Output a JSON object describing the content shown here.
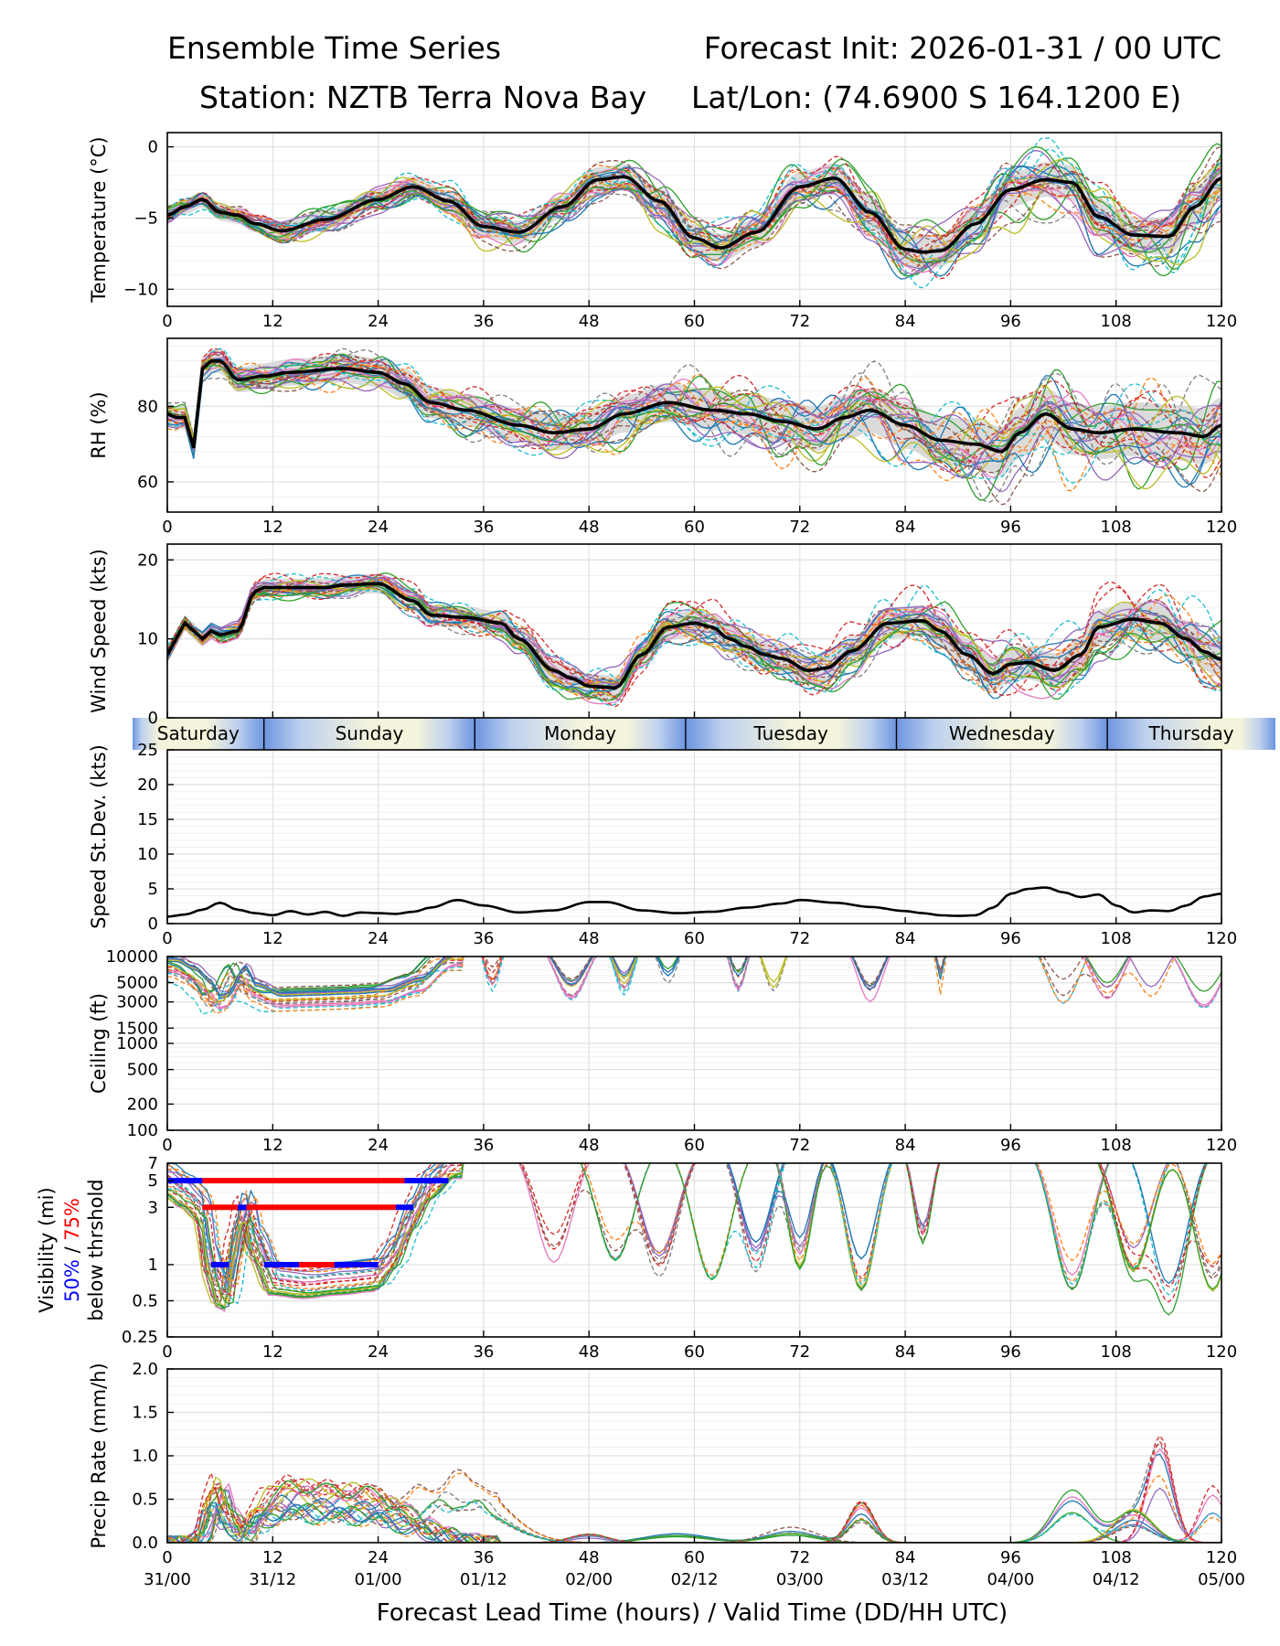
{
  "header": {
    "left_line1": "Ensemble Time Series",
    "right_line1": "Forecast Init: 2026-01-31 / 00 UTC",
    "left_line2": "Station: NZTB Terra Nova Bay",
    "right_line2": "Lat/Lon: (74.6900 S 164.1200 E)"
  },
  "colors": {
    "members": [
      "#1f77b4",
      "#ff7f0e",
      "#2ca02c",
      "#d62728",
      "#9467bd",
      "#8c564b",
      "#e377c2",
      "#7f7f7f",
      "#bcbd22",
      "#17becf"
    ],
    "mean": "#000000",
    "spread_fill": "#cccccc",
    "grid": "#e0e0e0",
    "vis_50": "#0000ff",
    "vis_75": "#ff0000",
    "band_blue": "#6d95e0",
    "band_cream": "#f4f4dc"
  },
  "x_axis": {
    "ticks": [
      0,
      12,
      24,
      36,
      48,
      60,
      72,
      84,
      96,
      108,
      120
    ],
    "valid_times": [
      "31/00",
      "31/12",
      "01/00",
      "01/12",
      "02/00",
      "02/12",
      "03/00",
      "03/12",
      "04/00",
      "04/12",
      "05/00"
    ],
    "label": "Forecast Lead Time (hours) / Valid Time (DD/HH UTC)",
    "range": [
      0,
      120
    ]
  },
  "day_band": [
    "Saturday",
    "Sunday",
    "Monday",
    "Tuesday",
    "Wednesday",
    "Thursday"
  ],
  "vis_label": {
    "line1": "Visibility (mi)",
    "p50": "50%",
    "slash": " / ",
    "p75": "75%",
    "line3": "below thrshold"
  },
  "chart_data": [
    {
      "id": "temp",
      "type": "line",
      "ylabel": "Temperature (°C)",
      "ylim": [
        -11.2,
        1.0
      ],
      "yticks": [
        0,
        -5,
        -10
      ],
      "ytick_labels": [
        "0",
        "−5",
        "−10"
      ],
      "mean": {
        "x": [
          0,
          2,
          4,
          6,
          8,
          10,
          13,
          18,
          24,
          28,
          32,
          36,
          40,
          45,
          49,
          52,
          56,
          60,
          63,
          67,
          72,
          76,
          80,
          84,
          86,
          88,
          92,
          96,
          100,
          103,
          106,
          110,
          114,
          117,
          120
        ],
        "y": [
          -4.8,
          -4.2,
          -3.7,
          -4.6,
          -4.8,
          -5.4,
          -5.9,
          -5.1,
          -3.7,
          -2.8,
          -3.8,
          -5.6,
          -6.0,
          -4.2,
          -2.3,
          -2.1,
          -3.8,
          -6.4,
          -7.1,
          -6.0,
          -2.8,
          -2.2,
          -4.6,
          -7.2,
          -7.4,
          -7.3,
          -5.4,
          -3.0,
          -2.3,
          -2.5,
          -4.9,
          -6.2,
          -6.3,
          -4.2,
          -2.2
        ]
      },
      "spread": 0.9,
      "members": 26,
      "dashed_every": 2,
      "clip_low": -10.5,
      "clip_high": 0.6
    },
    {
      "id": "rh",
      "type": "line",
      "ylabel": "RH (%)",
      "ylim": [
        52,
        98
      ],
      "yticks": [
        60,
        80
      ],
      "ytick_labels": [
        "60",
        "80"
      ],
      "mean": {
        "x": [
          0,
          1,
          2,
          3,
          4,
          5,
          6,
          8,
          11,
          14,
          20,
          24,
          27,
          30,
          34,
          40,
          44,
          48,
          52,
          57,
          62,
          66,
          70,
          74,
          77,
          80,
          84,
          88,
          92,
          95,
          97,
          100,
          103,
          106,
          110,
          115,
          118,
          120
        ],
        "y": [
          78,
          77,
          77,
          69,
          90,
          92,
          92,
          87,
          88,
          89,
          90,
          89,
          86,
          81,
          79,
          75,
          73,
          74,
          78,
          81,
          79,
          78,
          76,
          74,
          77,
          79,
          75,
          71,
          70,
          68,
          73,
          78,
          74,
          73,
          74,
          73,
          72,
          75
        ]
      },
      "spread": 5,
      "members": 26,
      "dashed_every": 2,
      "clip_low": 54,
      "clip_high": 97
    },
    {
      "id": "wind",
      "type": "line",
      "ylabel": "Wind Speed (kts)",
      "ylim": [
        0,
        22
      ],
      "yticks": [
        0,
        10,
        20
      ],
      "ytick_labels": [
        "0",
        "10",
        "20"
      ],
      "mean": {
        "x": [
          0,
          1,
          2,
          3,
          4,
          5,
          6,
          8,
          10,
          11,
          14,
          18,
          20,
          24,
          28,
          30,
          34,
          38,
          40,
          44,
          46,
          48,
          51,
          54,
          57,
          60,
          62,
          64,
          66,
          68,
          70,
          73,
          75,
          78,
          82,
          86,
          88,
          91,
          94,
          96,
          98,
          101,
          104,
          106,
          110,
          113,
          116,
          118,
          120
        ],
        "y": [
          8,
          10,
          12,
          11,
          10,
          11,
          10.5,
          11,
          16,
          16.5,
          16.5,
          16.5,
          16.8,
          17,
          14.8,
          13,
          12.7,
          12,
          10,
          6,
          5,
          4,
          3.8,
          8,
          11.5,
          12,
          11.5,
          10,
          9,
          8,
          7.5,
          6,
          6.3,
          8.5,
          12,
          12.3,
          11,
          8,
          5.6,
          6.8,
          7,
          6,
          8,
          11.5,
          12.5,
          12,
          10,
          8.4,
          7.4
        ]
      },
      "spread": 1.6,
      "members": 26,
      "dashed_every": 2,
      "clip_low": 0,
      "clip_high": 21
    },
    {
      "id": "std",
      "type": "line",
      "ylabel": "Speed St.Dev. (kts)",
      "ylim": [
        0,
        25
      ],
      "yticks": [
        0,
        5,
        10,
        15,
        20,
        25
      ],
      "ytick_labels": [
        "0",
        "5",
        "10",
        "15",
        "20",
        "25"
      ],
      "mean": {
        "x": [
          0,
          2,
          4,
          6,
          8,
          10,
          12,
          14,
          16,
          18,
          20,
          22,
          24,
          26,
          28,
          30,
          33,
          36,
          40,
          44,
          48,
          50,
          54,
          58,
          62,
          66,
          70,
          72,
          76,
          80,
          84,
          86,
          88,
          90,
          92,
          94,
          96,
          98,
          100,
          102,
          104,
          106,
          108,
          110,
          112,
          114,
          116,
          118,
          120
        ],
        "y": [
          1.0,
          1.3,
          2.0,
          3.0,
          2.0,
          1.5,
          1.2,
          1.8,
          1.3,
          1.7,
          1.1,
          1.6,
          1.5,
          1.4,
          1.7,
          2.3,
          3.4,
          2.6,
          1.6,
          1.9,
          3.1,
          3.1,
          1.9,
          1.5,
          1.7,
          2.3,
          2.9,
          3.4,
          3.0,
          2.4,
          1.8,
          1.5,
          1.2,
          1.1,
          1.2,
          2.3,
          4.3,
          5.0,
          5.2,
          4.5,
          3.8,
          4.2,
          2.6,
          1.6,
          1.9,
          1.8,
          2.6,
          3.9,
          4.3
        ]
      }
    },
    {
      "id": "ceiling",
      "type": "line",
      "scale": "log",
      "ylabel": "Ceiling (ft)",
      "ylim": [
        100,
        10000
      ],
      "yticks": [
        100,
        200,
        500,
        1000,
        1500,
        3000,
        5000,
        10000
      ],
      "ytick_labels": [
        "100",
        "200",
        "500",
        "1000",
        "1500",
        "3000",
        "5000",
        "10000"
      ],
      "members": 22,
      "early_profile": {
        "x": [
          0,
          2,
          4,
          5,
          6,
          8,
          9,
          12,
          16,
          20,
          24,
          28,
          32
        ],
        "y": [
          8000,
          6500,
          4500,
          3000,
          3200,
          6500,
          4200,
          3200,
          3300,
          3400,
          3600,
          4800,
          9500
        ]
      },
      "dips": [
        {
          "x": 37,
          "y": 5500,
          "w": 1.2
        },
        {
          "x": 46,
          "y": 4000,
          "w": 2.5
        },
        {
          "x": 52,
          "y": 5000,
          "w": 1.5
        },
        {
          "x": 57,
          "y": 5500,
          "w": 1.5
        },
        {
          "x": 65,
          "y": 5000,
          "w": 1.2
        },
        {
          "x": 69,
          "y": 4500,
          "w": 1.5
        },
        {
          "x": 80,
          "y": 3500,
          "w": 2.0
        },
        {
          "x": 88,
          "y": 5000,
          "w": 0.6
        },
        {
          "x": 102,
          "y": 4000,
          "w": 2.5
        },
        {
          "x": 107,
          "y": 3800,
          "w": 2.5
        },
        {
          "x": 112,
          "y": 3500,
          "w": 2.5
        },
        {
          "x": 118,
          "y": 3200,
          "w": 3.0
        }
      ]
    },
    {
      "id": "vis",
      "type": "line",
      "scale": "log",
      "ylim": [
        0.25,
        7
      ],
      "yticks": [
        0.25,
        0.5,
        1,
        3,
        5,
        7
      ],
      "ytick_labels": [
        "0.25",
        "0.5",
        "1",
        "3",
        "5",
        "7"
      ],
      "members": 24,
      "early_profile": {
        "x": [
          0,
          2,
          4,
          5,
          6,
          7,
          8,
          9,
          10,
          12,
          16,
          20,
          24,
          26,
          28,
          30,
          33
        ],
        "y": [
          5,
          4,
          3,
          1,
          0.6,
          0.55,
          1.5,
          3,
          1.5,
          0.75,
          0.7,
          0.75,
          0.8,
          1.2,
          2.5,
          4.5,
          7
        ]
      },
      "thresholds": [
        {
          "level": 5,
          "segments": [
            {
              "from": 0,
              "to": 4,
              "pct": "50"
            },
            {
              "from": 4,
              "to": 27,
              "pct": "75"
            },
            {
              "from": 27,
              "to": 32,
              "pct": "50"
            }
          ]
        },
        {
          "level": 3,
          "segments": [
            {
              "from": 4,
              "to": 8,
              "pct": "75"
            },
            {
              "from": 8,
              "to": 9,
              "pct": "50"
            },
            {
              "from": 9,
              "to": 26,
              "pct": "75"
            },
            {
              "from": 26,
              "to": 28,
              "pct": "50"
            }
          ]
        },
        {
          "level": 1,
          "segments": [
            {
              "from": 5,
              "to": 7,
              "pct": "50"
            },
            {
              "from": 11,
              "to": 15,
              "pct": "50"
            },
            {
              "from": 15,
              "to": 19,
              "pct": "75"
            },
            {
              "from": 19,
              "to": 24,
              "pct": "50"
            }
          ]
        }
      ],
      "dips": [
        {
          "x": 44,
          "y": 1.4,
          "w": 3.0
        },
        {
          "x": 51,
          "y": 1.3,
          "w": 3.0
        },
        {
          "x": 56,
          "y": 1.0,
          "w": 3.0
        },
        {
          "x": 62,
          "y": 0.9,
          "w": 3.0
        },
        {
          "x": 67,
          "y": 1.1,
          "w": 2.5
        },
        {
          "x": 72,
          "y": 1.2,
          "w": 2.0
        },
        {
          "x": 79,
          "y": 0.8,
          "w": 2.5
        },
        {
          "x": 86,
          "y": 1.8,
          "w": 1.5
        },
        {
          "x": 103,
          "y": 0.8,
          "w": 3.0
        },
        {
          "x": 110,
          "y": 1.1,
          "w": 3.0
        },
        {
          "x": 114,
          "y": 0.5,
          "w": 3.0
        },
        {
          "x": 119,
          "y": 0.75,
          "w": 3.0
        }
      ]
    },
    {
      "id": "precip",
      "type": "line",
      "ylabel": "Precip Rate (mm/h)",
      "ylim": [
        0,
        2.0
      ],
      "yticks": [
        0,
        0.5,
        1.0,
        1.5,
        2.0
      ],
      "ytick_labels": [
        "0.0",
        "0.5",
        "1.0",
        "1.5",
        "2.0"
      ],
      "members": 24,
      "early_profile": {
        "x": [
          0,
          3,
          4,
          5,
          6,
          7,
          8,
          9,
          10,
          12,
          14,
          18,
          22,
          24,
          26,
          28,
          30,
          32,
          34,
          36,
          38
        ],
        "y": [
          0,
          0,
          0.05,
          0.45,
          0.6,
          0.3,
          0.2,
          0.1,
          0.3,
          0.45,
          0.55,
          0.5,
          0.48,
          0.45,
          0.35,
          0.25,
          0.15,
          0.08,
          0.03,
          0,
          0
        ]
      },
      "bumps": [
        {
          "x": 34,
          "y": 0.6,
          "w": 6
        },
        {
          "x": 48,
          "y": 0.08,
          "w": 3
        },
        {
          "x": 58,
          "y": 0.12,
          "w": 5
        },
        {
          "x": 71,
          "y": 0.15,
          "w": 4
        },
        {
          "x": 79,
          "y": 0.38,
          "w": 2
        },
        {
          "x": 103,
          "y": 0.5,
          "w": 3
        },
        {
          "x": 110,
          "y": 0.3,
          "w": 3
        },
        {
          "x": 113,
          "y": 0.95,
          "w": 2
        },
        {
          "x": 119,
          "y": 0.52,
          "w": 2
        }
      ]
    }
  ]
}
